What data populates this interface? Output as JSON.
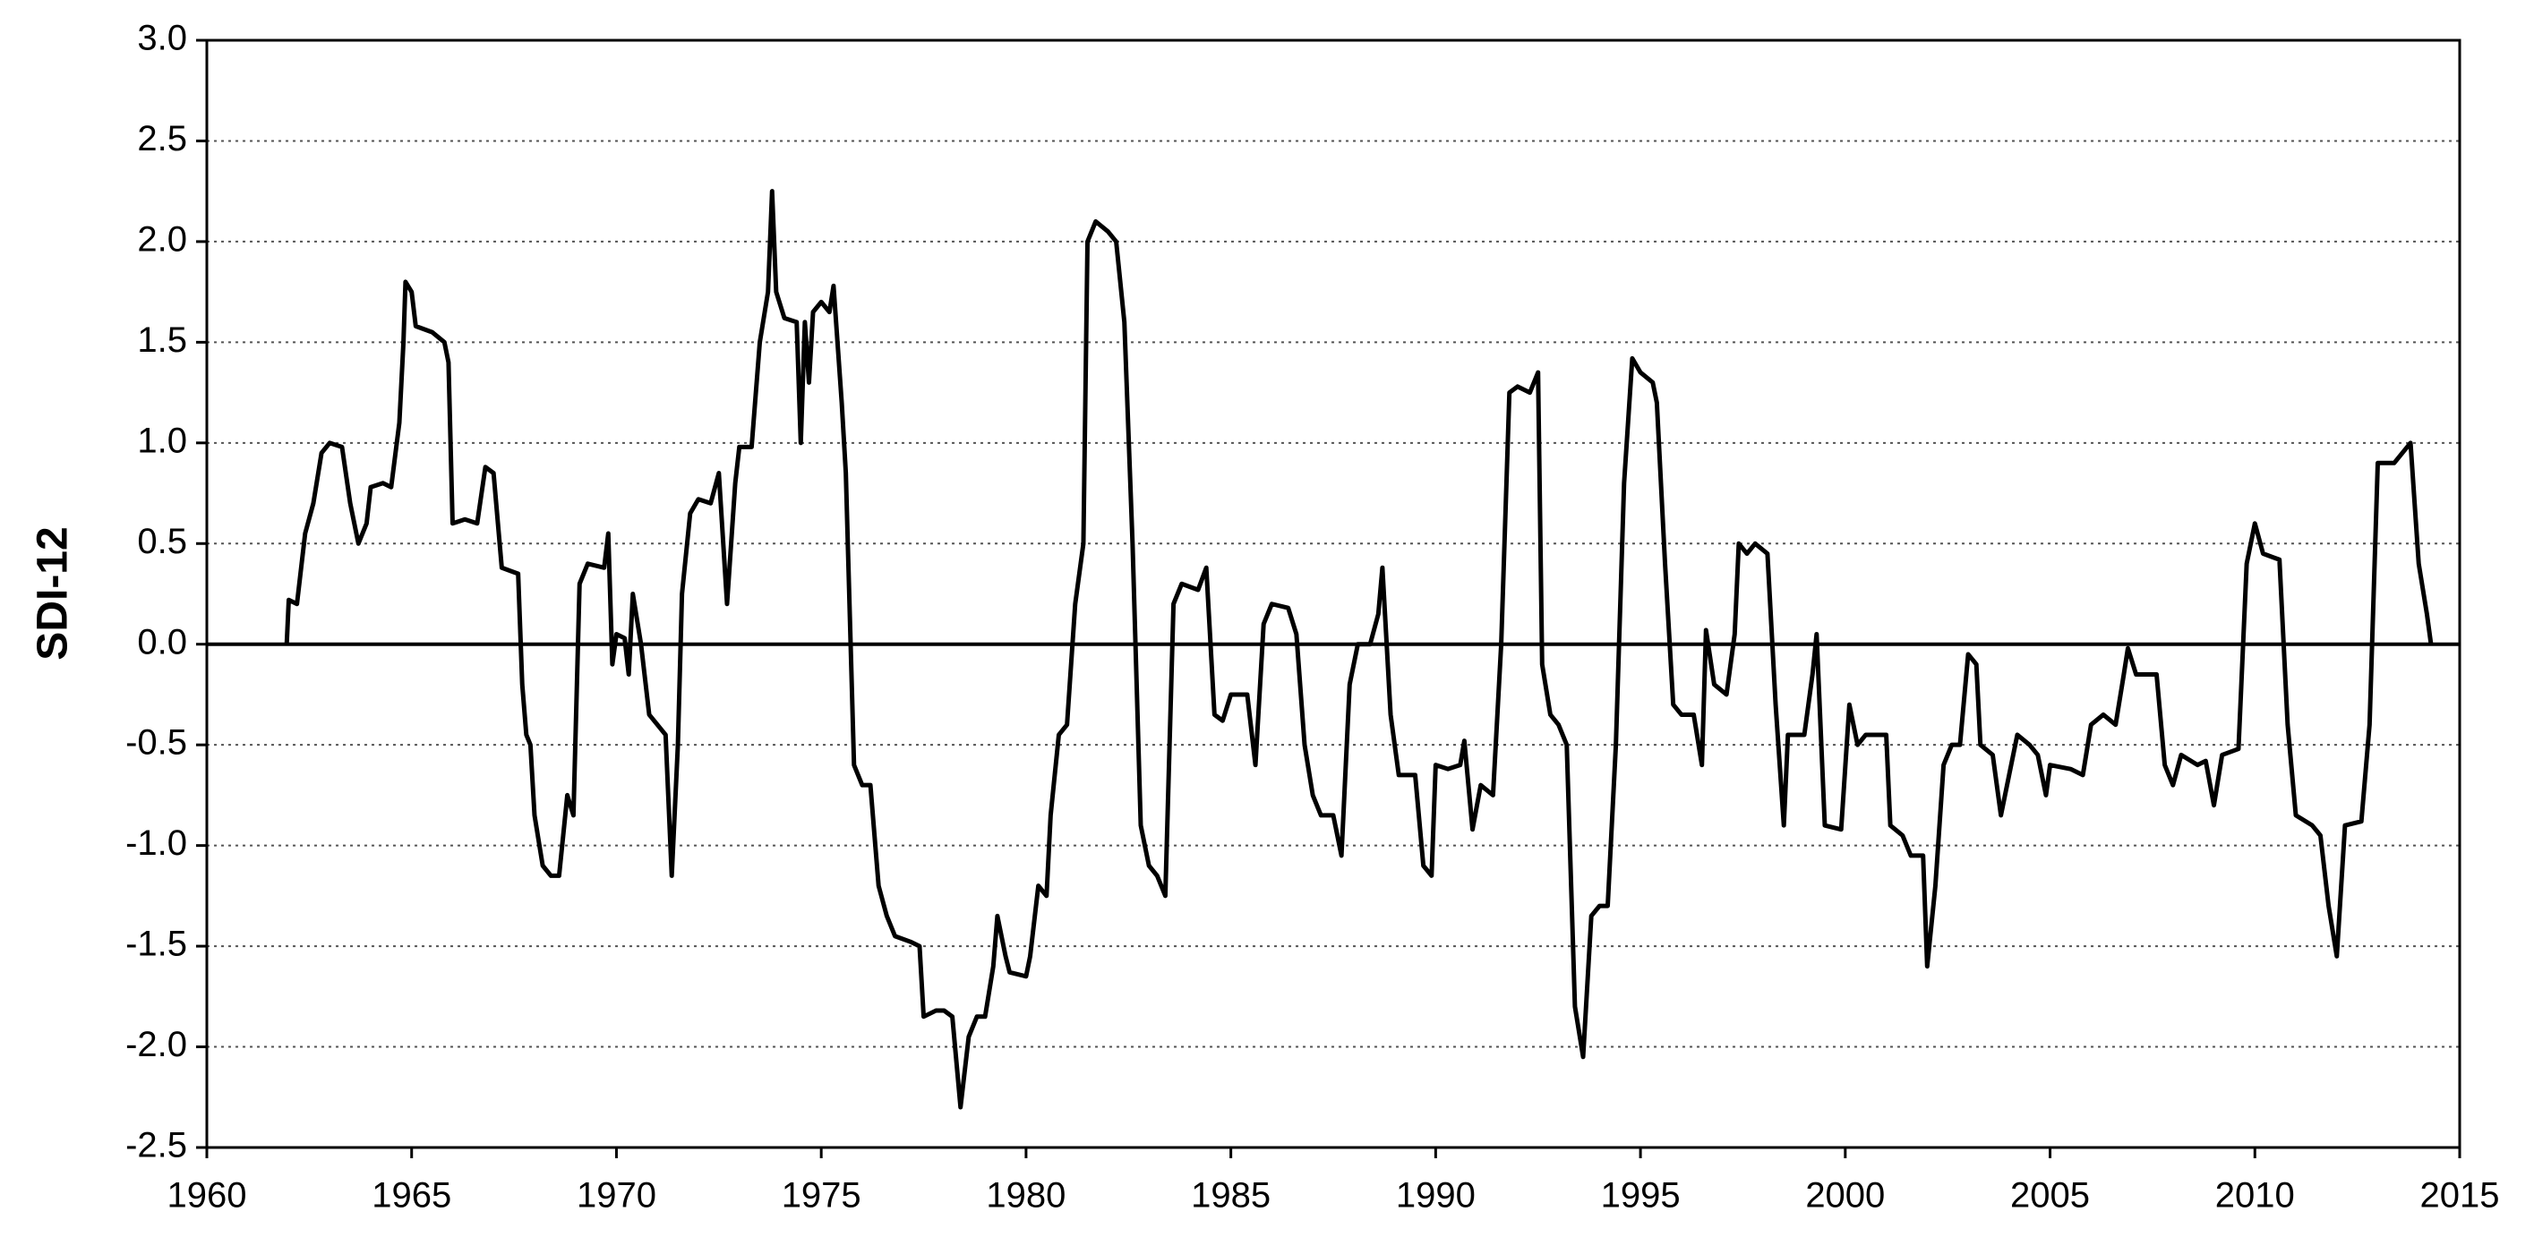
{
  "chart_data": {
    "type": "line",
    "y_label": "SDI-12",
    "color": "#000000",
    "grid": true,
    "xlim": [
      1960,
      2015
    ],
    "xticks": [
      1960,
      1965,
      1970,
      1975,
      1980,
      1985,
      1990,
      1995,
      2000,
      2005,
      2010,
      2015
    ],
    "ylim": [
      -2.5,
      3.0
    ],
    "yticks": [
      {
        "value": -2.5,
        "label": "-2.5"
      },
      {
        "value": -2,
        "label": "-2.0"
      },
      {
        "value": -1.5,
        "label": "-1.5"
      },
      {
        "value": -1,
        "label": "-1.0"
      },
      {
        "value": -0.5,
        "label": "-0.5"
      },
      {
        "value": 0,
        "label": "0.0"
      },
      {
        "value": 0.5,
        "label": "0.5"
      },
      {
        "value": 1,
        "label": "1.0"
      },
      {
        "value": 1.5,
        "label": "1.5"
      },
      {
        "value": 2,
        "label": "2.0"
      },
      {
        "value": 2.5,
        "label": "2.5"
      },
      {
        "value": 3,
        "label": "3.0"
      }
    ],
    "x": [
      1961.95,
      1962.0,
      1962.2,
      1962.4,
      1962.6,
      1962.8,
      1963.0,
      1963.3,
      1963.5,
      1963.7,
      1963.9,
      1964.0,
      1964.3,
      1964.5,
      1964.7,
      1964.8,
      1964.85,
      1965.0,
      1965.1,
      1965.5,
      1965.8,
      1965.9,
      1966.0,
      1966.3,
      1966.6,
      1966.8,
      1967.0,
      1967.2,
      1967.6,
      1967.7,
      1967.8,
      1967.9,
      1968.0,
      1968.2,
      1968.4,
      1968.6,
      1968.8,
      1968.95,
      1969.1,
      1969.3,
      1969.7,
      1969.8,
      1969.9,
      1970.0,
      1970.2,
      1970.3,
      1970.4,
      1970.6,
      1970.8,
      1971.0,
      1971.2,
      1971.35,
      1971.5,
      1971.6,
      1971.8,
      1972.0,
      1972.3,
      1972.5,
      1972.7,
      1972.9,
      1973.0,
      1973.3,
      1973.5,
      1973.7,
      1973.8,
      1973.9,
      1974.1,
      1974.4,
      1974.5,
      1974.6,
      1974.7,
      1974.8,
      1975.0,
      1975.2,
      1975.3,
      1975.5,
      1975.6,
      1975.8,
      1976.0,
      1976.2,
      1976.4,
      1976.6,
      1976.8,
      1977.2,
      1977.4,
      1977.5,
      1977.8,
      1978.0,
      1978.2,
      1978.4,
      1978.6,
      1978.8,
      1979.0,
      1979.2,
      1979.3,
      1979.5,
      1979.6,
      1980.0,
      1980.1,
      1980.3,
      1980.5,
      1980.6,
      1980.8,
      1981.0,
      1981.2,
      1981.4,
      1981.5,
      1981.7,
      1982.0,
      1982.2,
      1982.4,
      1982.6,
      1982.8,
      1983.0,
      1983.2,
      1983.4,
      1983.6,
      1983.8,
      1984.2,
      1984.4,
      1984.6,
      1984.8,
      1985.0,
      1985.4,
      1985.6,
      1985.8,
      1986.0,
      1986.4,
      1986.6,
      1986.8,
      1987.0,
      1987.2,
      1987.5,
      1987.7,
      1987.9,
      1988.1,
      1988.4,
      1988.6,
      1988.7,
      1988.9,
      1989.1,
      1989.5,
      1989.7,
      1989.9,
      1990.0,
      1990.3,
      1990.6,
      1990.7,
      1990.9,
      1991.1,
      1991.4,
      1991.6,
      1991.8,
      1992.0,
      1992.3,
      1992.5,
      1992.6,
      1992.8,
      1993.0,
      1993.2,
      1993.4,
      1993.6,
      1993.8,
      1994.0,
      1994.2,
      1994.4,
      1994.6,
      1994.8,
      1995.0,
      1995.3,
      1995.4,
      1995.6,
      1995.8,
      1996.0,
      1996.3,
      1996.5,
      1996.6,
      1996.8,
      1997.1,
      1997.3,
      1997.4,
      1997.6,
      1997.8,
      1998.1,
      1998.3,
      1998.5,
      1998.6,
      1999.0,
      1999.2,
      1999.3,
      1999.5,
      1999.9,
      2000.1,
      2000.3,
      2000.5,
      2001.0,
      2001.1,
      2001.4,
      2001.6,
      2001.9,
      2002.0,
      2002.2,
      2002.4,
      2002.6,
      2002.8,
      2003.0,
      2003.2,
      2003.3,
      2003.6,
      2003.8,
      2004.0,
      2004.2,
      2004.5,
      2004.7,
      2004.9,
      2005.0,
      2005.5,
      2005.8,
      2006.0,
      2006.3,
      2006.6,
      2006.8,
      2006.9,
      2007.1,
      2007.6,
      2007.8,
      2008.0,
      2008.2,
      2008.6,
      2008.8,
      2009.0,
      2009.2,
      2009.6,
      2009.8,
      2010.0,
      2010.2,
      2010.6,
      2010.8,
      2011.0,
      2011.4,
      2011.6,
      2011.8,
      2012.0,
      2012.2,
      2012.6,
      2012.8,
      2013.0,
      2013.4,
      2013.6,
      2013.8,
      2014.0,
      2014.2,
      2014.3
    ],
    "values": [
      0.0,
      0.22,
      0.2,
      0.55,
      0.7,
      0.95,
      1.0,
      0.98,
      0.7,
      0.5,
      0.6,
      0.78,
      0.8,
      0.78,
      1.1,
      1.5,
      1.8,
      1.75,
      1.58,
      1.55,
      1.5,
      1.4,
      0.6,
      0.62,
      0.6,
      0.88,
      0.85,
      0.38,
      0.35,
      -0.2,
      -0.45,
      -0.5,
      -0.85,
      -1.1,
      -1.15,
      -1.15,
      -0.75,
      -0.85,
      0.3,
      0.4,
      0.38,
      0.55,
      -0.1,
      0.05,
      0.03,
      -0.15,
      0.25,
      0.0,
      -0.35,
      -0.4,
      -0.45,
      -1.15,
      -0.5,
      0.25,
      0.65,
      0.72,
      0.7,
      0.85,
      0.2,
      0.8,
      0.98,
      0.98,
      1.5,
      1.75,
      2.25,
      1.75,
      1.62,
      1.6,
      1.0,
      1.6,
      1.3,
      1.65,
      1.7,
      1.65,
      1.78,
      1.2,
      0.85,
      -0.6,
      -0.7,
      -0.7,
      -1.2,
      -1.35,
      -1.45,
      -1.48,
      -1.5,
      -1.85,
      -1.82,
      -1.82,
      -1.85,
      -2.3,
      -1.95,
      -1.85,
      -1.85,
      -1.6,
      -1.35,
      -1.55,
      -1.63,
      -1.65,
      -1.55,
      -1.2,
      -1.25,
      -0.85,
      -0.45,
      -0.4,
      0.2,
      0.5,
      2.0,
      2.1,
      2.05,
      2.0,
      1.6,
      0.5,
      -0.9,
      -1.1,
      -1.15,
      -1.25,
      0.2,
      0.3,
      0.27,
      0.38,
      -0.35,
      -0.38,
      -0.25,
      -0.25,
      -0.6,
      0.1,
      0.2,
      0.18,
      0.05,
      -0.5,
      -0.75,
      -0.85,
      -0.85,
      -1.05,
      -0.2,
      0.0,
      0.0,
      0.15,
      0.38,
      -0.35,
      -0.65,
      -0.65,
      -1.1,
      -1.15,
      -0.6,
      -0.62,
      -0.6,
      -0.48,
      -0.92,
      -0.7,
      -0.75,
      0.0,
      1.25,
      1.28,
      1.25,
      1.35,
      -0.1,
      -0.35,
      -0.4,
      -0.5,
      -1.8,
      -2.05,
      -1.35,
      -1.3,
      -1.3,
      -0.5,
      0.8,
      1.42,
      1.35,
      1.3,
      1.2,
      0.4,
      -0.3,
      -0.35,
      -0.35,
      -0.6,
      0.07,
      -0.2,
      -0.25,
      0.05,
      0.5,
      0.45,
      0.5,
      0.45,
      -0.3,
      -0.9,
      -0.45,
      -0.45,
      -0.15,
      0.05,
      -0.9,
      -0.92,
      -0.3,
      -0.5,
      -0.45,
      -0.45,
      -0.9,
      -0.95,
      -1.05,
      -1.05,
      -1.6,
      -1.2,
      -0.6,
      -0.5,
      -0.5,
      -0.05,
      -0.1,
      -0.5,
      -0.55,
      -0.85,
      -0.65,
      -0.45,
      -0.5,
      -0.55,
      -0.75,
      -0.6,
      -0.62,
      -0.65,
      -0.4,
      -0.35,
      -0.4,
      -0.15,
      -0.02,
      -0.15,
      -0.15,
      -0.6,
      -0.7,
      -0.55,
      -0.6,
      -0.58,
      -0.8,
      -0.55,
      -0.52,
      0.4,
      0.6,
      0.45,
      0.42,
      -0.4,
      -0.85,
      -0.9,
      -0.95,
      -1.3,
      -1.55,
      -0.9,
      -0.88,
      -0.4,
      0.9,
      0.9,
      0.95,
      1.0,
      0.4,
      0.15,
      0.0
    ]
  }
}
